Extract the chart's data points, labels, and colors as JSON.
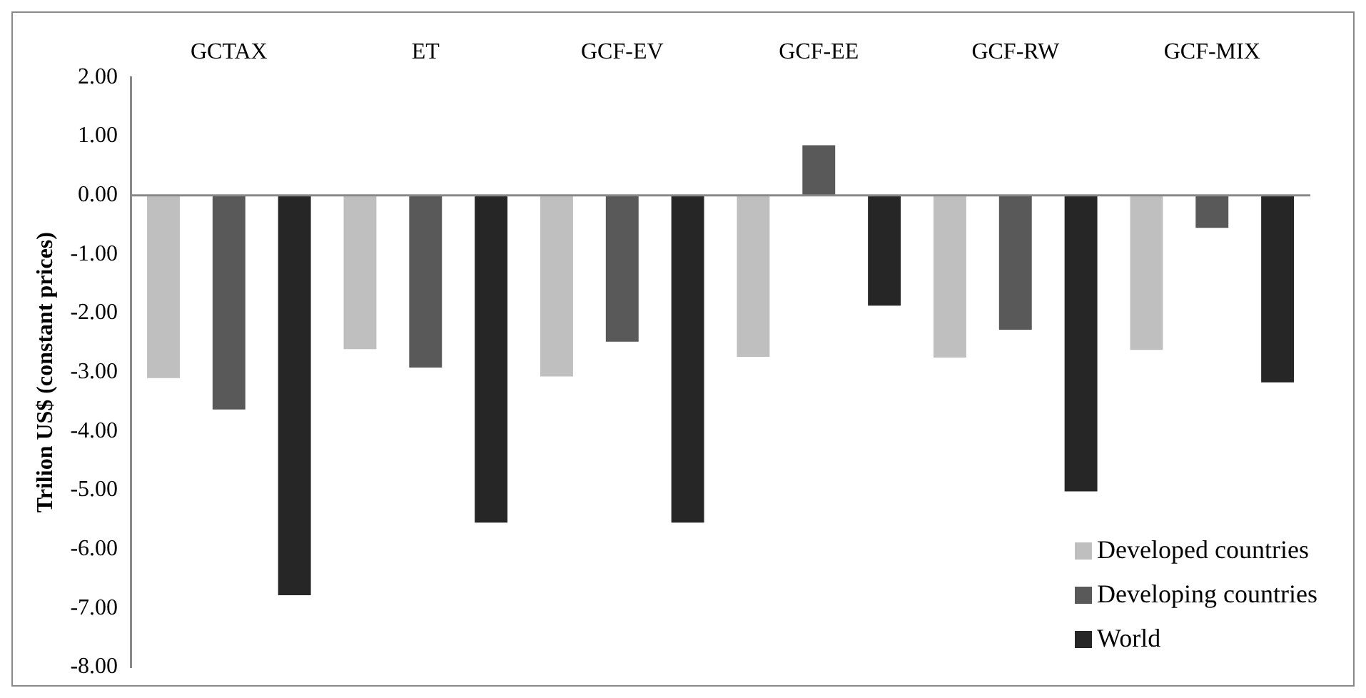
{
  "chart_data": {
    "type": "bar",
    "ylabel": "Trilion US$ (constant prices)",
    "categories": [
      "GCTAX",
      "ET",
      "GCF-EV",
      "GCF-EE",
      "GCF-RW",
      "GCF-MIX"
    ],
    "series": [
      {
        "name": "Developed countries",
        "color": "#bfbfbf",
        "values": [
          -3.1,
          -2.61,
          -3.07,
          -2.74,
          -2.75,
          -2.62
        ]
      },
      {
        "name": "Developing countries",
        "color": "#595959",
        "values": [
          -3.63,
          -2.92,
          -2.48,
          0.85,
          -2.28,
          -0.55
        ]
      },
      {
        "name": "World",
        "color": "#262626",
        "values": [
          -6.78,
          -5.55,
          -5.55,
          -1.87,
          -5.02,
          -3.17
        ]
      }
    ],
    "ylim": [
      -8,
      2
    ],
    "yticks": [
      {
        "value": 2,
        "label": "2.00"
      },
      {
        "value": 1,
        "label": "1.00"
      },
      {
        "value": 0,
        "label": "0.00"
      },
      {
        "value": -1,
        "label": "-1.00"
      },
      {
        "value": -2,
        "label": "-2.00"
      },
      {
        "value": -3,
        "label": "-3.00"
      },
      {
        "value": -4,
        "label": "-4.00"
      },
      {
        "value": -5,
        "label": "-5.00"
      },
      {
        "value": -6,
        "label": "-6.00"
      },
      {
        "value": -7,
        "label": "-7.00"
      },
      {
        "value": -8,
        "label": "-8.00"
      }
    ],
    "legend": "bottom right"
  }
}
